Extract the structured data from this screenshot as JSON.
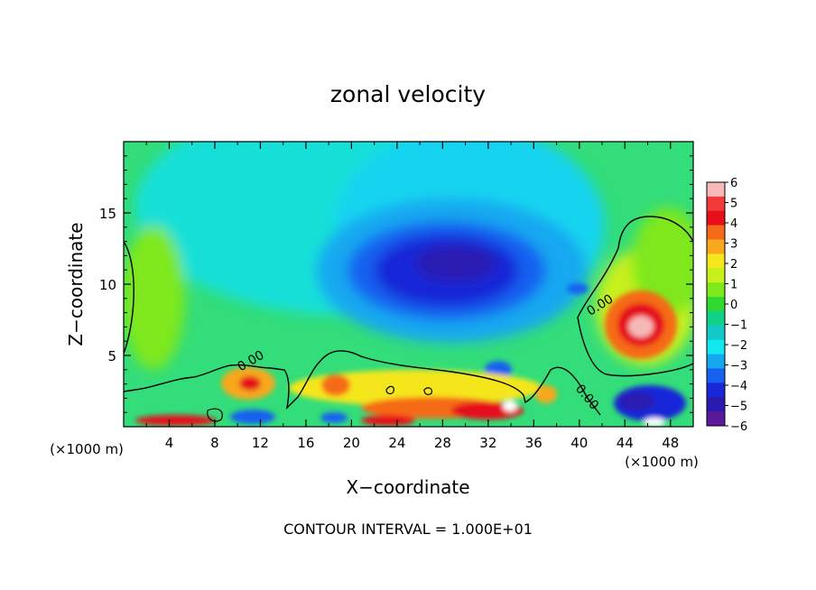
{
  "chart_data": {
    "type": "heatmap",
    "title": "zonal velocity",
    "xlabel": "X−coordinate",
    "ylabel": "Z−coordinate",
    "x_unit_left": "(×1000 m)",
    "x_unit_right": "(×1000 m)",
    "footer": "CONTOUR INTERVAL = 1.000E+01",
    "xlim": [
      0,
      50
    ],
    "ylim": [
      0,
      20
    ],
    "x_ticks": [
      4,
      8,
      12,
      16,
      20,
      24,
      28,
      32,
      36,
      40,
      44,
      48
    ],
    "x_tick_labels": [
      "4",
      "8",
      "12",
      "16",
      "20",
      "24",
      "28",
      "32",
      "36",
      "40",
      "44",
      "48"
    ],
    "y_ticks": [
      5,
      10,
      15
    ],
    "y_tick_labels": [
      "5",
      "10",
      "15"
    ],
    "colorbar": {
      "ticks": [
        6,
        5,
        4,
        3,
        2,
        1,
        0,
        -1,
        -2,
        -3,
        -4,
        -5,
        -6
      ],
      "tick_labels": [
        "6",
        "5",
        "4",
        "3",
        "2",
        "1",
        "0",
        "−1",
        "−2",
        "−3",
        "−4",
        "−5",
        "−6"
      ],
      "colors": [
        "#f7b8b8",
        "#f23a3a",
        "#e60f1a",
        "#f56a18",
        "#f7a81c",
        "#f5e61e",
        "#c8f01a",
        "#7ee81a",
        "#2fd92f",
        "#10d08a",
        "#12c8c8",
        "#12e8ef",
        "#14a8f0",
        "#1860f0",
        "#1828d8",
        "#2a1ab0",
        "#5a1a9a"
      ],
      "range": [
        -6,
        6
      ]
    },
    "contour_labels": [
      "0.00",
      "0.00",
      "0.00"
    ],
    "features": [
      {
        "name": "negative-core",
        "x": 29,
        "z": 11.5,
        "value": -5.5
      },
      {
        "name": "positive-core",
        "x": 45,
        "z": 7,
        "value": 5.5
      },
      {
        "name": "surface-negative",
        "x": 45,
        "z": 1,
        "value": -5
      }
    ]
  }
}
